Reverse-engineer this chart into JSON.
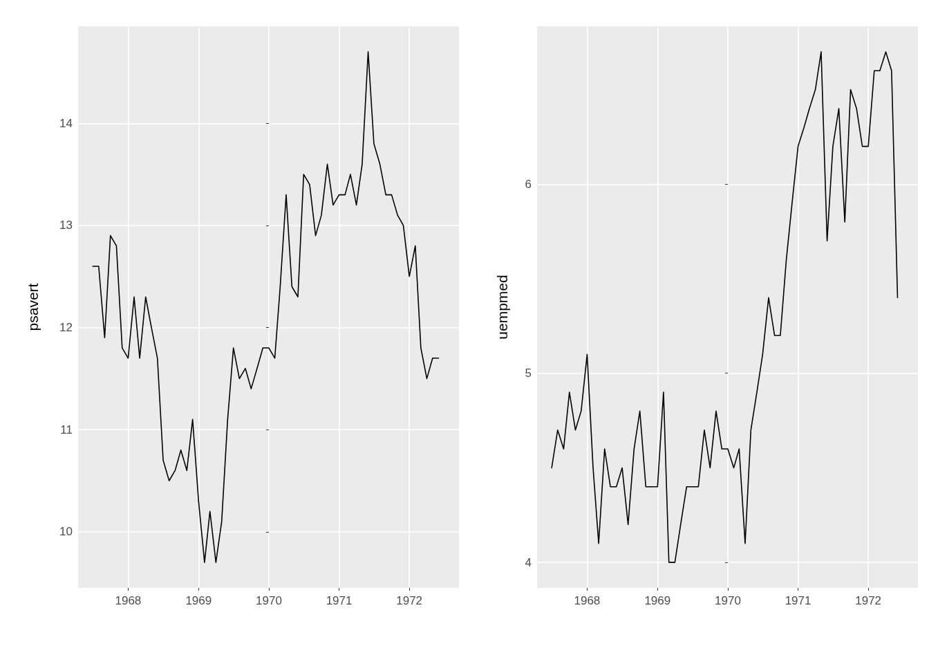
{
  "chart_data": [
    {
      "type": "line",
      "ylabel": "psavert",
      "color": "#000000",
      "grid": true,
      "x": [
        "1967-07",
        "1967-08",
        "1967-09",
        "1967-10",
        "1967-11",
        "1967-12",
        "1968-01",
        "1968-02",
        "1968-03",
        "1968-04",
        "1968-05",
        "1968-06",
        "1968-07",
        "1968-08",
        "1968-09",
        "1968-10",
        "1968-11",
        "1968-12",
        "1969-01",
        "1969-02",
        "1969-03",
        "1969-04",
        "1969-05",
        "1969-06",
        "1969-07",
        "1969-08",
        "1969-09",
        "1969-10",
        "1969-11",
        "1969-12",
        "1970-01",
        "1970-02",
        "1970-03",
        "1970-04",
        "1970-05",
        "1970-06",
        "1970-07",
        "1970-08",
        "1970-09",
        "1970-10",
        "1970-11",
        "1970-12",
        "1971-01",
        "1971-02",
        "1971-03",
        "1971-04",
        "1971-05",
        "1971-06",
        "1971-07",
        "1971-08",
        "1971-09",
        "1971-10",
        "1971-11",
        "1971-12",
        "1972-01",
        "1972-02",
        "1972-03",
        "1972-04",
        "1972-05",
        "1972-06"
      ],
      "values": [
        12.6,
        12.6,
        11.9,
        12.9,
        12.8,
        11.8,
        11.7,
        12.3,
        11.7,
        12.3,
        12.0,
        11.7,
        10.7,
        10.5,
        10.6,
        10.8,
        10.6,
        11.1,
        10.3,
        9.7,
        10.2,
        9.7,
        10.1,
        11.1,
        11.8,
        11.5,
        11.6,
        11.4,
        11.6,
        11.8,
        11.8,
        11.7,
        12.4,
        13.3,
        12.4,
        12.3,
        13.5,
        13.4,
        12.9,
        13.1,
        13.6,
        13.2,
        13.3,
        13.3,
        13.5,
        13.2,
        13.6,
        14.7,
        13.8,
        13.6,
        13.3,
        13.3,
        13.1,
        13.0,
        12.5,
        12.8,
        11.8,
        11.5,
        11.7,
        11.7
      ],
      "xlim": [
        "1967-04-16",
        "1972-09-15"
      ],
      "xticks": [
        "1968",
        "1969",
        "1970",
        "1971",
        "1972"
      ],
      "ylim": [
        9.45,
        14.95
      ],
      "yticks": [
        10,
        11,
        12,
        13,
        14
      ]
    },
    {
      "type": "line",
      "ylabel": "uempmed",
      "color": "#000000",
      "grid": true,
      "x": [
        "1967-07",
        "1967-08",
        "1967-09",
        "1967-10",
        "1967-11",
        "1967-12",
        "1968-01",
        "1968-02",
        "1968-03",
        "1968-04",
        "1968-05",
        "1968-06",
        "1968-07",
        "1968-08",
        "1968-09",
        "1968-10",
        "1968-11",
        "1968-12",
        "1969-01",
        "1969-02",
        "1969-03",
        "1969-04",
        "1969-05",
        "1969-06",
        "1969-07",
        "1969-08",
        "1969-09",
        "1969-10",
        "1969-11",
        "1969-12",
        "1970-01",
        "1970-02",
        "1970-03",
        "1970-04",
        "1970-05",
        "1970-06",
        "1970-07",
        "1970-08",
        "1970-09",
        "1970-10",
        "1970-11",
        "1970-12",
        "1971-01",
        "1971-02",
        "1971-03",
        "1971-04",
        "1971-05",
        "1971-06",
        "1971-07",
        "1971-08",
        "1971-09",
        "1971-10",
        "1971-11",
        "1971-12",
        "1972-01",
        "1972-02",
        "1972-03",
        "1972-04",
        "1972-05",
        "1972-06"
      ],
      "values": [
        4.5,
        4.7,
        4.6,
        4.9,
        4.7,
        4.8,
        5.1,
        4.5,
        4.1,
        4.6,
        4.4,
        4.4,
        4.5,
        4.2,
        4.6,
        4.8,
        4.4,
        4.4,
        4.4,
        4.9,
        4.0,
        4.0,
        4.2,
        4.4,
        4.4,
        4.4,
        4.7,
        4.5,
        4.8,
        4.6,
        4.6,
        4.5,
        4.6,
        4.1,
        4.7,
        4.9,
        5.1,
        5.4,
        5.2,
        5.2,
        5.6,
        5.9,
        6.2,
        6.3,
        6.4,
        6.5,
        6.7,
        5.7,
        6.2,
        6.4,
        5.8,
        6.5,
        6.4,
        6.2,
        6.2,
        6.6,
        6.6,
        6.7,
        6.6,
        5.4
      ],
      "xlim": [
        "1967-04-16",
        "1972-09-15"
      ],
      "xticks": [
        "1968",
        "1969",
        "1970",
        "1971",
        "1972"
      ],
      "ylim": [
        3.865,
        6.835
      ],
      "yticks": [
        4,
        5,
        6
      ]
    }
  ]
}
